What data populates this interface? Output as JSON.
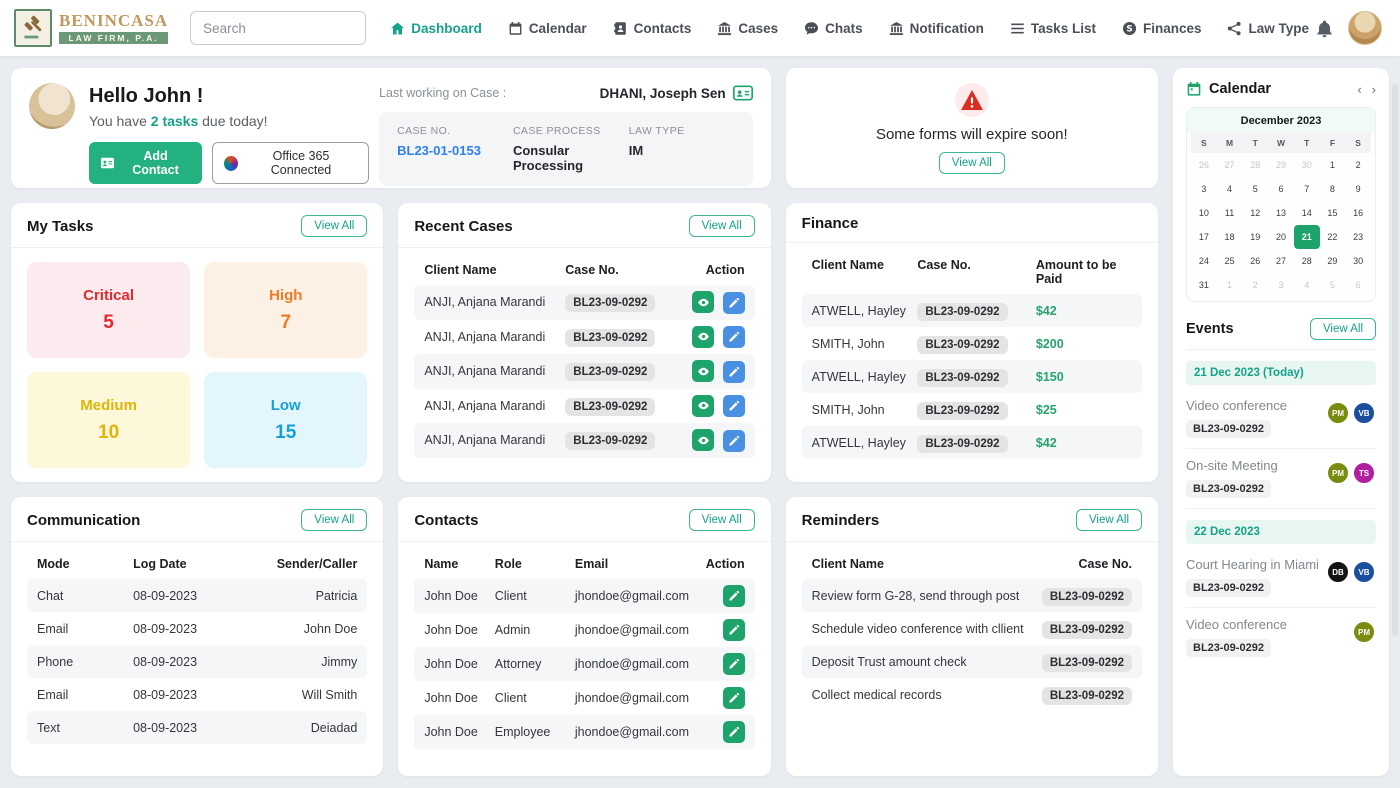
{
  "header": {
    "brand": {
      "name": "BENINCASA",
      "subtitle": "LAW FIRM, P.A."
    },
    "search_placeholder": "Search",
    "nav": [
      {
        "label": "Dashboard",
        "icon": "home-icon",
        "active": true
      },
      {
        "label": "Calendar",
        "icon": "calendar-icon",
        "active": false
      },
      {
        "label": "Contacts",
        "icon": "address-book-icon",
        "active": false
      },
      {
        "label": "Cases",
        "icon": "bank-icon",
        "active": false
      },
      {
        "label": "Chats",
        "icon": "chat-bubble-icon",
        "active": false
      },
      {
        "label": "Notification",
        "icon": "bank-icon",
        "active": false
      },
      {
        "label": "Tasks List",
        "icon": "list-icon",
        "active": false
      },
      {
        "label": "Finances",
        "icon": "dollar-icon",
        "active": false
      },
      {
        "label": "Law Type",
        "icon": "share-icon",
        "active": false
      }
    ]
  },
  "welcome": {
    "greeting": "Hello John !",
    "tasks_prefix": "You have ",
    "tasks_highlight": "2 tasks",
    "tasks_suffix": " due today!",
    "add_contact_label": "Add Contact",
    "office_label": "Office 365 Connected"
  },
  "last_case": {
    "label": "Last working on Case :",
    "person": "DHANI, Joseph Sen",
    "fields": [
      {
        "label": "CASE NO.",
        "value": "BL23-01-0153",
        "link": true
      },
      {
        "label": "CASE PROCESS",
        "value": "Consular Processing",
        "link": false
      },
      {
        "label": "LAW TYPE",
        "value": "IM",
        "link": false
      }
    ]
  },
  "alert": {
    "message": "Some forms will expire soon!",
    "view_all": "View All"
  },
  "my_tasks": {
    "title": "My Tasks",
    "view_all": "View All",
    "tiles": [
      {
        "label": "Critical",
        "count": "5",
        "color": "#e02b2b",
        "bg": "#fcebee"
      },
      {
        "label": "High",
        "count": "7",
        "color": "#f07c22",
        "bg": "#fdf1e6"
      },
      {
        "label": "Medium",
        "count": "10",
        "color": "#e0b40a",
        "bg": "#fdf8da"
      },
      {
        "label": "Low",
        "count": "15",
        "color": "#169fdb",
        "bg": "#e3f6fb"
      }
    ]
  },
  "recent_cases": {
    "title": "Recent Cases",
    "view_all": "View All",
    "columns": [
      "Client Name",
      "Case No.",
      "Action"
    ],
    "rows": [
      {
        "client": "ANJI, Anjana Marandi",
        "case_no": "BL23-09-0292"
      },
      {
        "client": "ANJI, Anjana Marandi",
        "case_no": "BL23-09-0292"
      },
      {
        "client": "ANJI, Anjana Marandi",
        "case_no": "BL23-09-0292"
      },
      {
        "client": "ANJI, Anjana Marandi",
        "case_no": "BL23-09-0292"
      },
      {
        "client": "ANJI, Anjana Marandi",
        "case_no": "BL23-09-0292"
      }
    ]
  },
  "finance": {
    "title": "Finance",
    "columns": [
      "Client Name",
      "Case No.",
      "Amount to be Paid"
    ],
    "rows": [
      {
        "client": "ATWELL, Hayley",
        "case_no": "BL23-09-0292",
        "amount": "$42"
      },
      {
        "client": "SMITH, John",
        "case_no": "BL23-09-0292",
        "amount": "$200"
      },
      {
        "client": "ATWELL, Hayley",
        "case_no": "BL23-09-0292",
        "amount": "$150"
      },
      {
        "client": "SMITH, John",
        "case_no": "BL23-09-0292",
        "amount": "$25"
      },
      {
        "client": "ATWELL, Hayley",
        "case_no": "BL23-09-0292",
        "amount": "$42"
      }
    ]
  },
  "communication": {
    "title": "Communication",
    "view_all": "View All",
    "columns": [
      "Mode",
      "Log Date",
      "Sender/Caller"
    ],
    "rows": [
      {
        "mode": "Chat",
        "date": "08-09-2023",
        "sender": "Patricia"
      },
      {
        "mode": "Email",
        "date": "08-09-2023",
        "sender": "John Doe"
      },
      {
        "mode": "Phone",
        "date": "08-09-2023",
        "sender": "Jimmy"
      },
      {
        "mode": "Email",
        "date": "08-09-2023",
        "sender": "Will Smith"
      },
      {
        "mode": "Text",
        "date": "08-09-2023",
        "sender": "Deiadad"
      }
    ]
  },
  "contacts": {
    "title": "Contacts",
    "view_all": "View All",
    "columns": [
      "Name",
      "Role",
      "Email",
      "Action"
    ],
    "rows": [
      {
        "name": "John Doe",
        "role": "Client",
        "email": "jhondoe@gmail.com"
      },
      {
        "name": "John Doe",
        "role": "Admin",
        "email": "jhondoe@gmail.com"
      },
      {
        "name": "John Doe",
        "role": "Attorney",
        "email": "jhondoe@gmail.com"
      },
      {
        "name": "John Doe",
        "role": "Client",
        "email": "jhondoe@gmail.com"
      },
      {
        "name": "John Doe",
        "role": "Employee",
        "email": "jhondoe@gmail.com"
      }
    ]
  },
  "reminders": {
    "title": "Reminders",
    "view_all": "View All",
    "columns": [
      "Client Name",
      "Case No."
    ],
    "rows": [
      {
        "text": "Review form G-28, send through post",
        "case_no": "BL23-09-0292"
      },
      {
        "text": "Schedule video conference with cllient",
        "case_no": "BL23-09-0292"
      },
      {
        "text": "Deposit Trust amount check",
        "case_no": "BL23-09-0292"
      },
      {
        "text": "Collect medical records",
        "case_no": "BL23-09-0292"
      }
    ]
  },
  "calendar": {
    "title": "Calendar",
    "month": "December 2023",
    "day_headers": [
      "S",
      "M",
      "T",
      "W",
      "T",
      "F",
      "S"
    ],
    "days": [
      {
        "d": "26",
        "muted": true
      },
      {
        "d": "27",
        "muted": true
      },
      {
        "d": "28",
        "muted": true
      },
      {
        "d": "29",
        "muted": true
      },
      {
        "d": "30",
        "muted": true
      },
      {
        "d": "1"
      },
      {
        "d": "2"
      },
      {
        "d": "3"
      },
      {
        "d": "4"
      },
      {
        "d": "5"
      },
      {
        "d": "6"
      },
      {
        "d": "7"
      },
      {
        "d": "8"
      },
      {
        "d": "9"
      },
      {
        "d": "10"
      },
      {
        "d": "11"
      },
      {
        "d": "12"
      },
      {
        "d": "13"
      },
      {
        "d": "14"
      },
      {
        "d": "15"
      },
      {
        "d": "16"
      },
      {
        "d": "17"
      },
      {
        "d": "18"
      },
      {
        "d": "19"
      },
      {
        "d": "20"
      },
      {
        "d": "21",
        "selected": true
      },
      {
        "d": "22"
      },
      {
        "d": "23"
      },
      {
        "d": "24"
      },
      {
        "d": "25"
      },
      {
        "d": "26"
      },
      {
        "d": "27"
      },
      {
        "d": "28"
      },
      {
        "d": "29"
      },
      {
        "d": "30"
      },
      {
        "d": "31"
      },
      {
        "d": "1",
        "muted": true
      },
      {
        "d": "2",
        "muted": true
      },
      {
        "d": "3",
        "muted": true
      },
      {
        "d": "4",
        "muted": true
      },
      {
        "d": "5",
        "muted": true
      },
      {
        "d": "6",
        "muted": true
      }
    ]
  },
  "events": {
    "title": "Events",
    "view_all": "View All",
    "groups": [
      {
        "date_label": "21 Dec 2023 (Today)",
        "items": [
          {
            "title": "Video conference",
            "case_no": "BL23-09-0292",
            "avatars": [
              {
                "initials": "PM",
                "color": "#7a8c10"
              },
              {
                "initials": "VB",
                "color": "#1b4f9e"
              }
            ]
          },
          {
            "title": "On-site Meeting",
            "case_no": "BL23-09-0292",
            "avatars": [
              {
                "initials": "PM",
                "color": "#7a8c10"
              },
              {
                "initials": "TS",
                "color": "#b01fa0"
              }
            ]
          }
        ]
      },
      {
        "date_label": "22 Dec 2023",
        "items": [
          {
            "title": "Court Hearing in Miami",
            "case_no": "BL23-09-0292",
            "avatars": [
              {
                "initials": "DB",
                "color": "#141414"
              },
              {
                "initials": "VB",
                "color": "#1b4f9e"
              }
            ]
          },
          {
            "title": "Video conference",
            "case_no": "BL23-09-0292",
            "avatars": [
              {
                "initials": "PM",
                "color": "#7a8c10"
              }
            ]
          }
        ]
      }
    ]
  }
}
